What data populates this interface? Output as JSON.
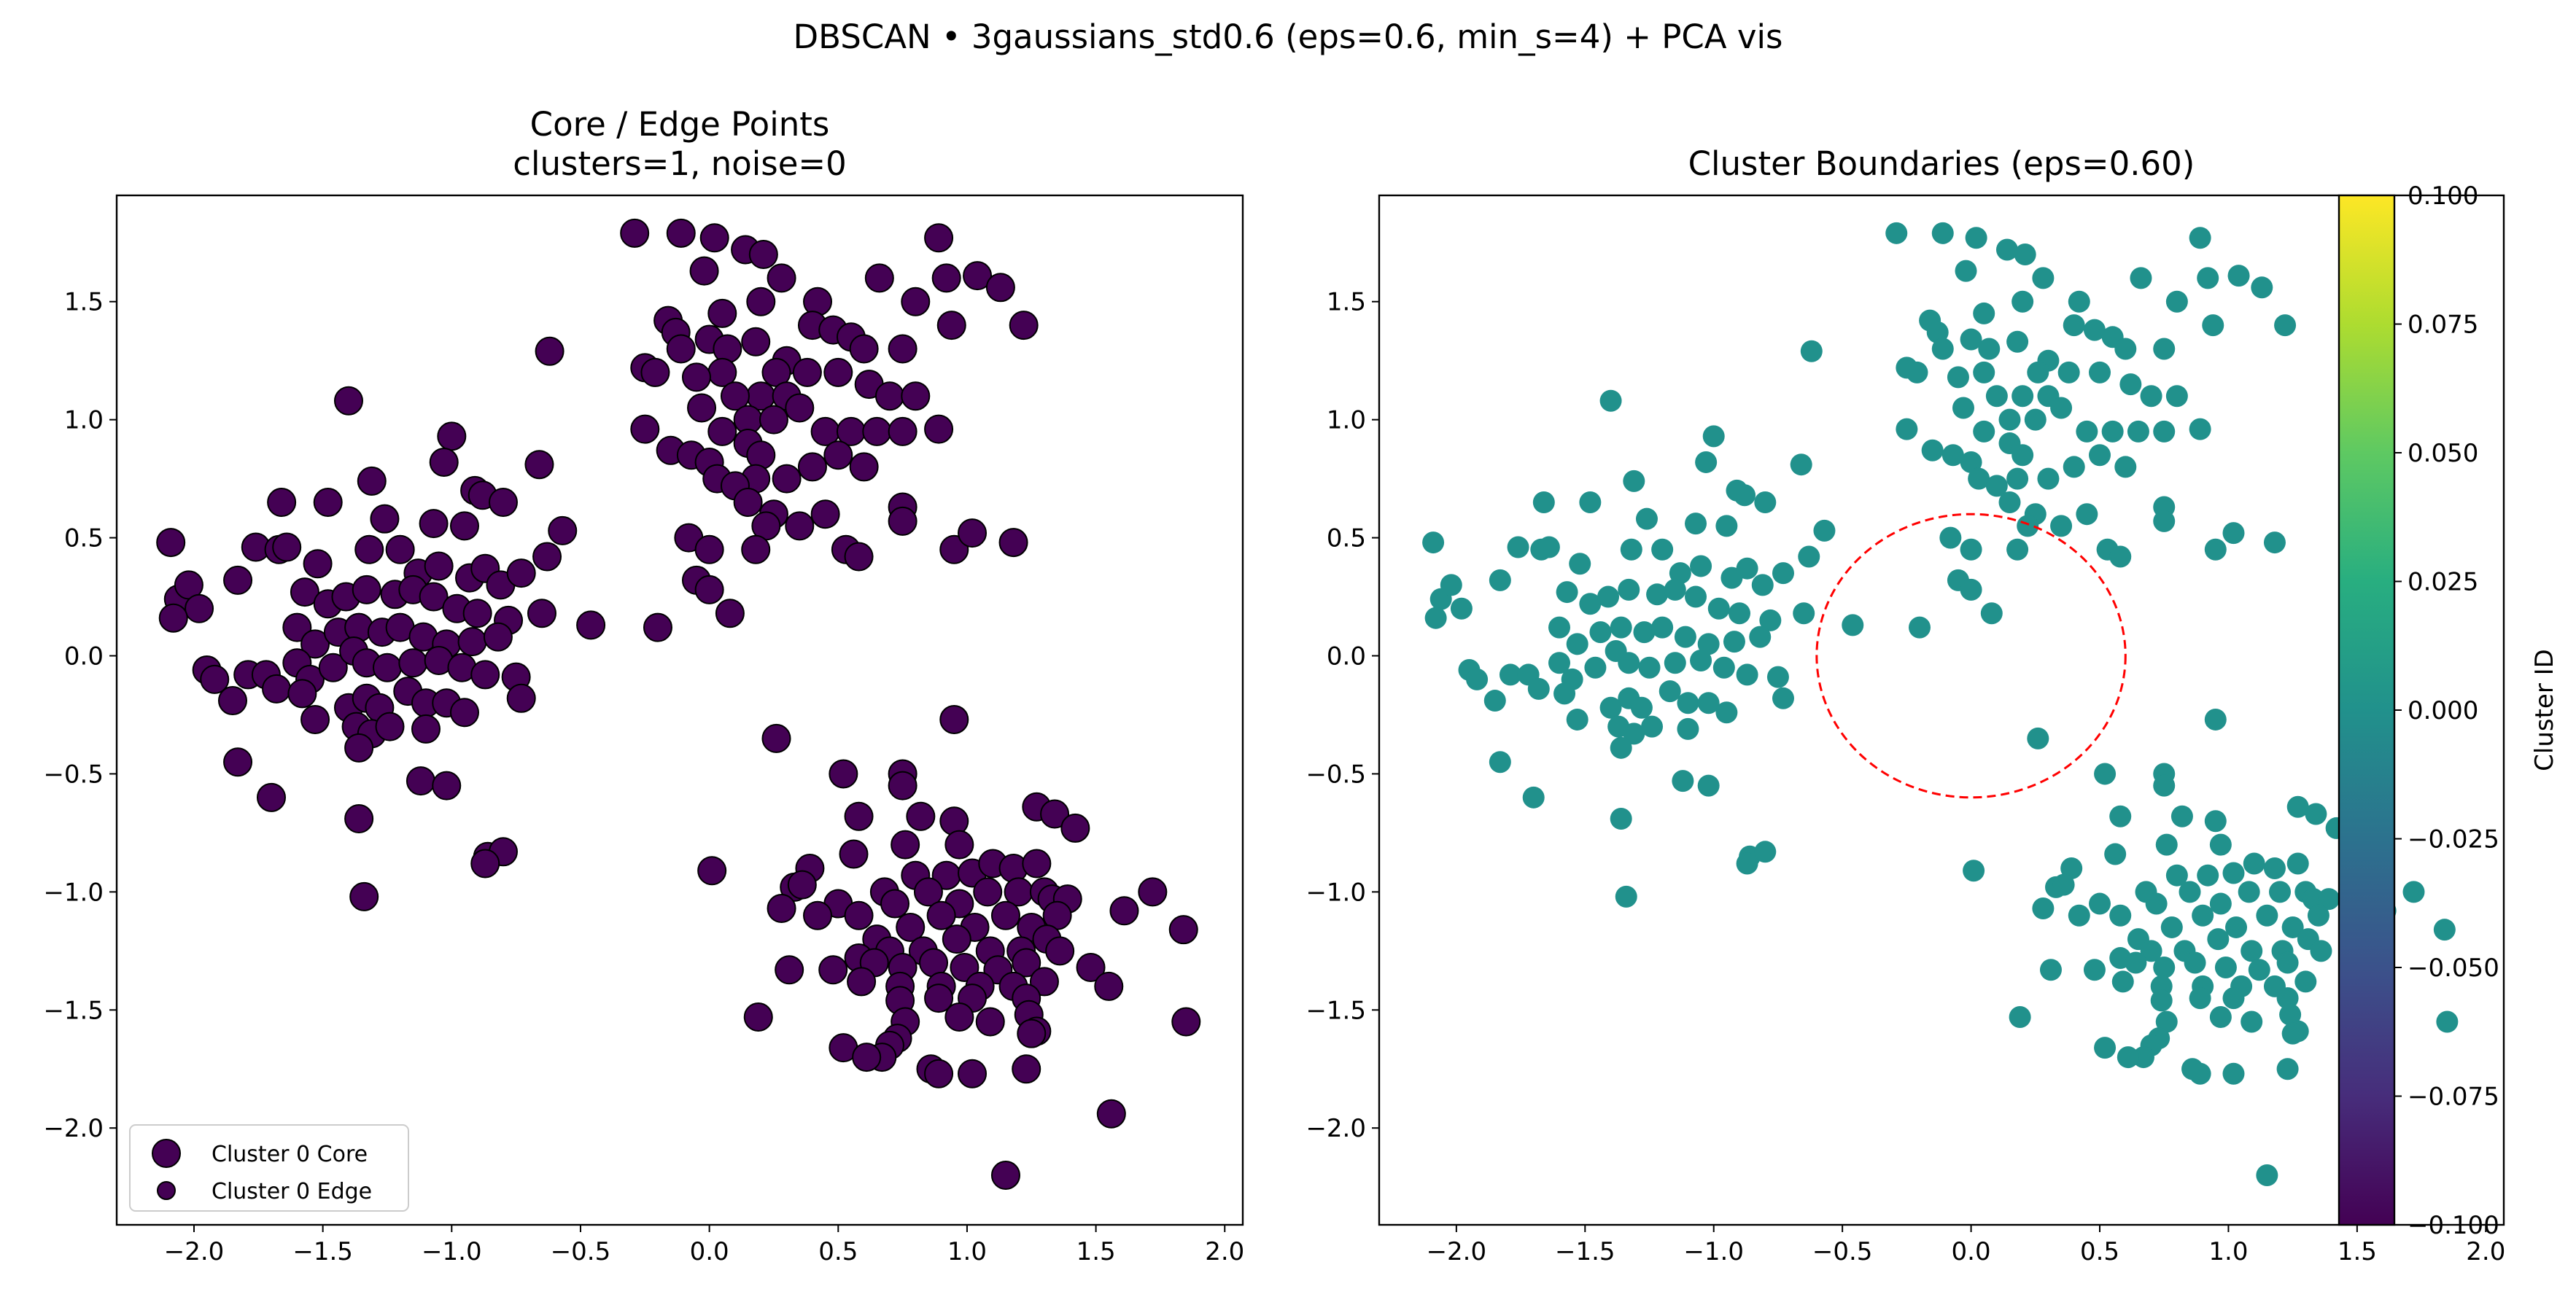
{
  "figure": {
    "suptitle": "DBSCAN • 3gaussians_std0.6  (eps=0.6, min_s=4) + PCA vis"
  },
  "left_panel": {
    "title_line1": "Core / Edge Points",
    "title_line2": "clusters=1, noise=0",
    "legend": [
      {
        "label": "Cluster 0 Core",
        "marker": "large-circle"
      },
      {
        "label": "Cluster 0 Edge",
        "marker": "small-circle"
      }
    ]
  },
  "right_panel": {
    "title": "Cluster Boundaries  (eps=0.60)"
  },
  "colorbar": {
    "label": "Cluster ID",
    "ticks": [
      "0.100",
      "0.075",
      "0.050",
      "0.025",
      "0.000",
      "−0.025",
      "−0.050",
      "−0.075",
      "−0.100"
    ],
    "range": [
      -0.1,
      0.1
    ]
  },
  "colors": {
    "core_fill": "#440154",
    "point_fill": "#21918c",
    "boundary": "#ff0000"
  },
  "chart_data": [
    {
      "type": "scatter",
      "title": "Core / Edge Points\nclusters=1, noise=0",
      "xlim": [
        -2.3,
        2.07
      ],
      "ylim": [
        -2.41,
        1.95
      ],
      "xticks": [
        "−2.0",
        "−1.5",
        "−1.0",
        "−0.5",
        "0.0",
        "0.5",
        "1.0",
        "1.5",
        "2.0"
      ],
      "yticks": [
        "−2.0",
        "−1.5",
        "−1.0",
        "−0.5",
        "0.0",
        "0.5",
        "1.0",
        "1.5"
      ],
      "legend_position": "lower-left",
      "series": [
        {
          "name": "Cluster 0 Core",
          "points_ref": "points"
        },
        {
          "name": "Cluster 0 Edge",
          "points_ref": "none"
        }
      ]
    },
    {
      "type": "scatter",
      "title": "Cluster Boundaries  (eps=0.60)",
      "xlim": [
        -2.3,
        2.07
      ],
      "ylim": [
        -2.41,
        1.95
      ],
      "xticks": [
        "−2.0",
        "−1.5",
        "−1.0",
        "−0.5",
        "0.0",
        "0.5",
        "1.0",
        "1.5",
        "2.0"
      ],
      "yticks": [
        "−2.0",
        "−1.5",
        "−1.0",
        "−0.5",
        "0.0",
        "0.5",
        "1.0",
        "1.5"
      ],
      "boundary": {
        "cx": 0.0,
        "cy": 0.0,
        "r": 0.6
      },
      "color_value": 0.0
    }
  ],
  "points": [
    [
      -0.29,
      1.79
    ],
    [
      -0.11,
      1.79
    ],
    [
      0.02,
      1.77
    ],
    [
      0.14,
      1.72
    ],
    [
      0.21,
      1.7
    ],
    [
      0.89,
      1.77
    ],
    [
      -0.02,
      1.63
    ],
    [
      0.28,
      1.6
    ],
    [
      0.92,
      1.6
    ],
    [
      1.04,
      1.61
    ],
    [
      1.13,
      1.56
    ],
    [
      0.66,
      1.6
    ],
    [
      0.42,
      1.5
    ],
    [
      0.8,
      1.5
    ],
    [
      0.2,
      1.5
    ],
    [
      0.05,
      1.45
    ],
    [
      -0.16,
      1.42
    ],
    [
      -0.13,
      1.37
    ],
    [
      -0.11,
      1.3
    ],
    [
      0.0,
      1.34
    ],
    [
      0.07,
      1.3
    ],
    [
      0.18,
      1.33
    ],
    [
      0.3,
      1.25
    ],
    [
      0.4,
      1.4
    ],
    [
      0.48,
      1.38
    ],
    [
      0.55,
      1.35
    ],
    [
      0.6,
      1.3
    ],
    [
      0.75,
      1.3
    ],
    [
      0.38,
      1.2
    ],
    [
      0.5,
      1.2
    ],
    [
      0.62,
      1.15
    ],
    [
      0.7,
      1.1
    ],
    [
      0.8,
      1.1
    ],
    [
      0.26,
      1.2
    ],
    [
      0.2,
      1.1
    ],
    [
      0.3,
      1.1
    ],
    [
      0.05,
      1.2
    ],
    [
      0.1,
      1.1
    ],
    [
      0.15,
      1.0
    ],
    [
      0.25,
      1.0
    ],
    [
      0.35,
      1.05
    ],
    [
      0.45,
      0.95
    ],
    [
      0.55,
      0.95
    ],
    [
      0.65,
      0.95
    ],
    [
      0.75,
      0.95
    ],
    [
      0.89,
      0.96
    ],
    [
      0.94,
      1.4
    ],
    [
      1.22,
      1.4
    ],
    [
      -0.25,
      1.22
    ],
    [
      -0.21,
      1.2
    ],
    [
      -0.05,
      1.18
    ],
    [
      -0.03,
      1.05
    ],
    [
      0.05,
      0.95
    ],
    [
      0.15,
      0.9
    ],
    [
      0.2,
      0.85
    ],
    [
      0.18,
      0.75
    ],
    [
      0.3,
      0.75
    ],
    [
      0.4,
      0.8
    ],
    [
      0.5,
      0.85
    ],
    [
      0.6,
      0.8
    ],
    [
      -0.25,
      0.96
    ],
    [
      -0.15,
      0.87
    ],
    [
      -0.07,
      0.85
    ],
    [
      0.0,
      0.82
    ],
    [
      0.03,
      0.75
    ],
    [
      0.1,
      0.72
    ],
    [
      0.15,
      0.65
    ],
    [
      0.25,
      0.6
    ],
    [
      0.35,
      0.55
    ],
    [
      0.45,
      0.6
    ],
    [
      0.75,
      0.63
    ],
    [
      0.75,
      0.57
    ],
    [
      0.53,
      0.45
    ],
    [
      0.58,
      0.42
    ],
    [
      0.95,
      0.45
    ],
    [
      1.02,
      0.52
    ],
    [
      1.18,
      0.48
    ],
    [
      0.22,
      0.55
    ],
    [
      0.18,
      0.45
    ],
    [
      -0.08,
      0.5
    ],
    [
      0.0,
      0.45
    ],
    [
      -0.05,
      0.32
    ],
    [
      0.0,
      0.28
    ],
    [
      0.08,
      0.18
    ],
    [
      -0.2,
      0.12
    ],
    [
      -0.46,
      0.13
    ],
    [
      -0.62,
      1.29
    ],
    [
      -1.4,
      1.08
    ],
    [
      -1.0,
      0.93
    ],
    [
      -1.03,
      0.82
    ],
    [
      -1.66,
      0.65
    ],
    [
      -1.48,
      0.65
    ],
    [
      -1.31,
      0.74
    ],
    [
      -1.26,
      0.58
    ],
    [
      -0.91,
      0.7
    ],
    [
      -0.88,
      0.68
    ],
    [
      -0.8,
      0.65
    ],
    [
      -0.66,
      0.81
    ],
    [
      -1.07,
      0.56
    ],
    [
      -0.95,
      0.55
    ],
    [
      -2.09,
      0.48
    ],
    [
      -2.06,
      0.24
    ],
    [
      -2.02,
      0.3
    ],
    [
      -1.98,
      0.2
    ],
    [
      -2.08,
      0.16
    ],
    [
      -1.83,
      0.32
    ],
    [
      -1.76,
      0.46
    ],
    [
      -1.67,
      0.45
    ],
    [
      -1.64,
      0.46
    ],
    [
      -1.52,
      0.39
    ],
    [
      -1.32,
      0.45
    ],
    [
      -1.2,
      0.45
    ],
    [
      -1.13,
      0.35
    ],
    [
      -1.05,
      0.38
    ],
    [
      -0.93,
      0.33
    ],
    [
      -0.87,
      0.37
    ],
    [
      -0.81,
      0.3
    ],
    [
      -0.73,
      0.35
    ],
    [
      -0.63,
      0.42
    ],
    [
      -0.57,
      0.53
    ],
    [
      -1.57,
      0.27
    ],
    [
      -1.48,
      0.22
    ],
    [
      -1.41,
      0.25
    ],
    [
      -1.33,
      0.28
    ],
    [
      -1.22,
      0.26
    ],
    [
      -1.15,
      0.28
    ],
    [
      -1.07,
      0.25
    ],
    [
      -0.98,
      0.2
    ],
    [
      -0.9,
      0.18
    ],
    [
      -0.78,
      0.15
    ],
    [
      -0.65,
      0.18
    ],
    [
      -1.6,
      0.12
    ],
    [
      -1.53,
      0.05
    ],
    [
      -1.44,
      0.1
    ],
    [
      -1.36,
      0.12
    ],
    [
      -1.27,
      0.1
    ],
    [
      -1.2,
      0.12
    ],
    [
      -1.11,
      0.08
    ],
    [
      -1.02,
      0.05
    ],
    [
      -0.92,
      0.06
    ],
    [
      -0.82,
      0.08
    ],
    [
      -1.95,
      -0.06
    ],
    [
      -1.92,
      -0.1
    ],
    [
      -1.79,
      -0.08
    ],
    [
      -1.72,
      -0.08
    ],
    [
      -1.68,
      -0.14
    ],
    [
      -1.6,
      -0.03
    ],
    [
      -1.55,
      -0.1
    ],
    [
      -1.46,
      -0.05
    ],
    [
      -1.38,
      0.02
    ],
    [
      -1.33,
      -0.03
    ],
    [
      -1.25,
      -0.05
    ],
    [
      -1.15,
      -0.03
    ],
    [
      -1.05,
      -0.02
    ],
    [
      -0.96,
      -0.05
    ],
    [
      -0.87,
      -0.08
    ],
    [
      -0.75,
      -0.09
    ],
    [
      -0.73,
      -0.18
    ],
    [
      -1.85,
      -0.19
    ],
    [
      -1.58,
      -0.16
    ],
    [
      -1.4,
      -0.22
    ],
    [
      -1.33,
      -0.18
    ],
    [
      -1.28,
      -0.22
    ],
    [
      -1.17,
      -0.15
    ],
    [
      -1.1,
      -0.2
    ],
    [
      -1.02,
      -0.2
    ],
    [
      -0.95,
      -0.24
    ],
    [
      -1.53,
      -0.27
    ],
    [
      -1.37,
      -0.3
    ],
    [
      -1.31,
      -0.33
    ],
    [
      -1.24,
      -0.3
    ],
    [
      -1.36,
      -0.39
    ],
    [
      -1.1,
      -0.31
    ],
    [
      -1.83,
      -0.45
    ],
    [
      -1.7,
      -0.6
    ],
    [
      -1.12,
      -0.53
    ],
    [
      -1.02,
      -0.55
    ],
    [
      -1.36,
      -0.69
    ],
    [
      -0.86,
      -0.85
    ],
    [
      -0.8,
      -0.83
    ],
    [
      -0.87,
      -0.88
    ],
    [
      -1.34,
      -1.02
    ],
    [
      0.01,
      -0.91
    ],
    [
      0.26,
      -0.35
    ],
    [
      0.52,
      -0.5
    ],
    [
      0.75,
      -0.5
    ],
    [
      0.75,
      -0.55
    ],
    [
      0.95,
      -0.27
    ],
    [
      0.58,
      -0.68
    ],
    [
      0.82,
      -0.68
    ],
    [
      0.95,
      -0.7
    ],
    [
      1.27,
      -0.64
    ],
    [
      1.34,
      -0.67
    ],
    [
      1.42,
      -0.73
    ],
    [
      0.39,
      -0.9
    ],
    [
      0.56,
      -0.84
    ],
    [
      0.76,
      -0.8
    ],
    [
      0.97,
      -0.8
    ],
    [
      0.33,
      -0.98
    ],
    [
      0.36,
      -0.97
    ],
    [
      0.5,
      -1.05
    ],
    [
      0.68,
      -1.0
    ],
    [
      0.8,
      -0.93
    ],
    [
      0.92,
      -0.93
    ],
    [
      1.02,
      -0.92
    ],
    [
      1.1,
      -0.88
    ],
    [
      1.18,
      -0.9
    ],
    [
      1.27,
      -0.88
    ],
    [
      0.28,
      -1.07
    ],
    [
      0.42,
      -1.1
    ],
    [
      0.58,
      -1.1
    ],
    [
      0.72,
      -1.05
    ],
    [
      0.85,
      -1.0
    ],
    [
      0.97,
      -1.05
    ],
    [
      1.08,
      -1.0
    ],
    [
      1.2,
      -1.0
    ],
    [
      1.3,
      -1.0
    ],
    [
      1.33,
      -1.03
    ],
    [
      1.39,
      -1.03
    ],
    [
      1.72,
      -1.0
    ],
    [
      0.65,
      -1.2
    ],
    [
      0.78,
      -1.15
    ],
    [
      0.9,
      -1.1
    ],
    [
      1.03,
      -1.15
    ],
    [
      1.15,
      -1.1
    ],
    [
      1.25,
      -1.15
    ],
    [
      1.35,
      -1.1
    ],
    [
      1.61,
      -1.08
    ],
    [
      0.7,
      -1.25
    ],
    [
      0.83,
      -1.25
    ],
    [
      0.96,
      -1.2
    ],
    [
      1.09,
      -1.25
    ],
    [
      1.21,
      -1.25
    ],
    [
      1.31,
      -1.2
    ],
    [
      1.84,
      -1.16
    ],
    [
      0.31,
      -1.33
    ],
    [
      0.48,
      -1.33
    ],
    [
      0.58,
      -1.28
    ],
    [
      0.64,
      -1.3
    ],
    [
      0.75,
      -1.32
    ],
    [
      0.87,
      -1.3
    ],
    [
      0.99,
      -1.32
    ],
    [
      1.12,
      -1.33
    ],
    [
      1.23,
      -1.3
    ],
    [
      1.36,
      -1.25
    ],
    [
      1.48,
      -1.32
    ],
    [
      0.59,
      -1.38
    ],
    [
      0.74,
      -1.4
    ],
    [
      0.9,
      -1.4
    ],
    [
      1.05,
      -1.4
    ],
    [
      1.18,
      -1.4
    ],
    [
      1.3,
      -1.38
    ],
    [
      1.55,
      -1.4
    ],
    [
      0.74,
      -1.46
    ],
    [
      0.89,
      -1.45
    ],
    [
      1.02,
      -1.45
    ],
    [
      1.23,
      -1.45
    ],
    [
      0.19,
      -1.53
    ],
    [
      0.76,
      -1.55
    ],
    [
      0.97,
      -1.53
    ],
    [
      1.09,
      -1.55
    ],
    [
      1.24,
      -1.52
    ],
    [
      1.85,
      -1.55
    ],
    [
      1.27,
      -1.59
    ],
    [
      1.25,
      -1.6
    ],
    [
      0.73,
      -1.62
    ],
    [
      0.7,
      -1.65
    ],
    [
      0.52,
      -1.66
    ],
    [
      0.67,
      -1.7
    ],
    [
      0.61,
      -1.7
    ],
    [
      0.86,
      -1.75
    ],
    [
      0.89,
      -1.77
    ],
    [
      1.02,
      -1.77
    ],
    [
      1.23,
      -1.75
    ],
    [
      1.56,
      -1.94
    ],
    [
      1.15,
      -2.2
    ]
  ]
}
